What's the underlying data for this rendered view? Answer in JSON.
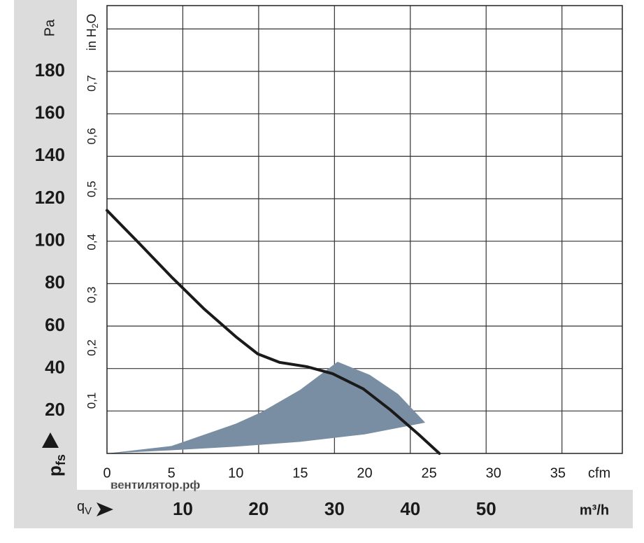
{
  "chart_data": {
    "type": "line",
    "y_unit": "Pa",
    "ylabel": {
      "main": "p",
      "sub": "fs"
    },
    "y2label": {
      "main": "in H",
      "sub": "2",
      "tail": "O"
    },
    "xlabel": {
      "main": "q",
      "sub": "V"
    },
    "x_unit": "cfm",
    "x2_unit": "m³/h",
    "watermark": "вентилятор.рф",
    "xlim": [
      0,
      40
    ],
    "xticks": [
      0,
      5,
      10,
      15,
      20,
      25,
      30,
      35
    ],
    "x2lim": [
      0,
      67.96
    ],
    "x2ticks": [
      10,
      20,
      30,
      40,
      50
    ],
    "x2grid": [
      10,
      20,
      30,
      40,
      50,
      60
    ],
    "ylim": [
      0,
      211
    ],
    "yticks": [
      20,
      40,
      60,
      80,
      100,
      120,
      140,
      160,
      180
    ],
    "ygrid": [
      20,
      40,
      60,
      80,
      100,
      120,
      140,
      160,
      180,
      200
    ],
    "y2lim": [
      0,
      0.847
    ],
    "y2ticks": [
      {
        "value": 0.1,
        "label": "0,1"
      },
      {
        "value": 0.2,
        "label": "0,2"
      },
      {
        "value": 0.3,
        "label": "0,3"
      },
      {
        "value": 0.4,
        "label": "0,4"
      },
      {
        "value": 0.5,
        "label": "0,5"
      },
      {
        "value": 0.6,
        "label": "0,6"
      },
      {
        "value": 0.7,
        "label": "0,7"
      }
    ],
    "grid": true,
    "series": [
      {
        "color": "#1a1a1a",
        "x": [
          0,
          2.5,
          5,
          7.5,
          10,
          11.7,
          13.4,
          15.5,
          17.5,
          19.9,
          22,
          24.2,
          25.8
        ],
        "values": [
          114.5,
          99,
          83.2,
          68.3,
          55,
          46.9,
          42.9,
          40.9,
          37.6,
          30.4,
          20.5,
          8.9,
          0
        ]
      }
    ],
    "band": {
      "color": "#7a8ea3",
      "x": [
        0,
        5,
        10,
        12,
        15,
        17.9,
        20.4,
        22.6,
        24.7,
        20,
        15,
        10,
        5,
        0
      ],
      "values": [
        0,
        3.5,
        14,
        19.5,
        30,
        43.2,
        37,
        28,
        14.5,
        9,
        5.5,
        3.2,
        1.5,
        0
      ]
    }
  }
}
